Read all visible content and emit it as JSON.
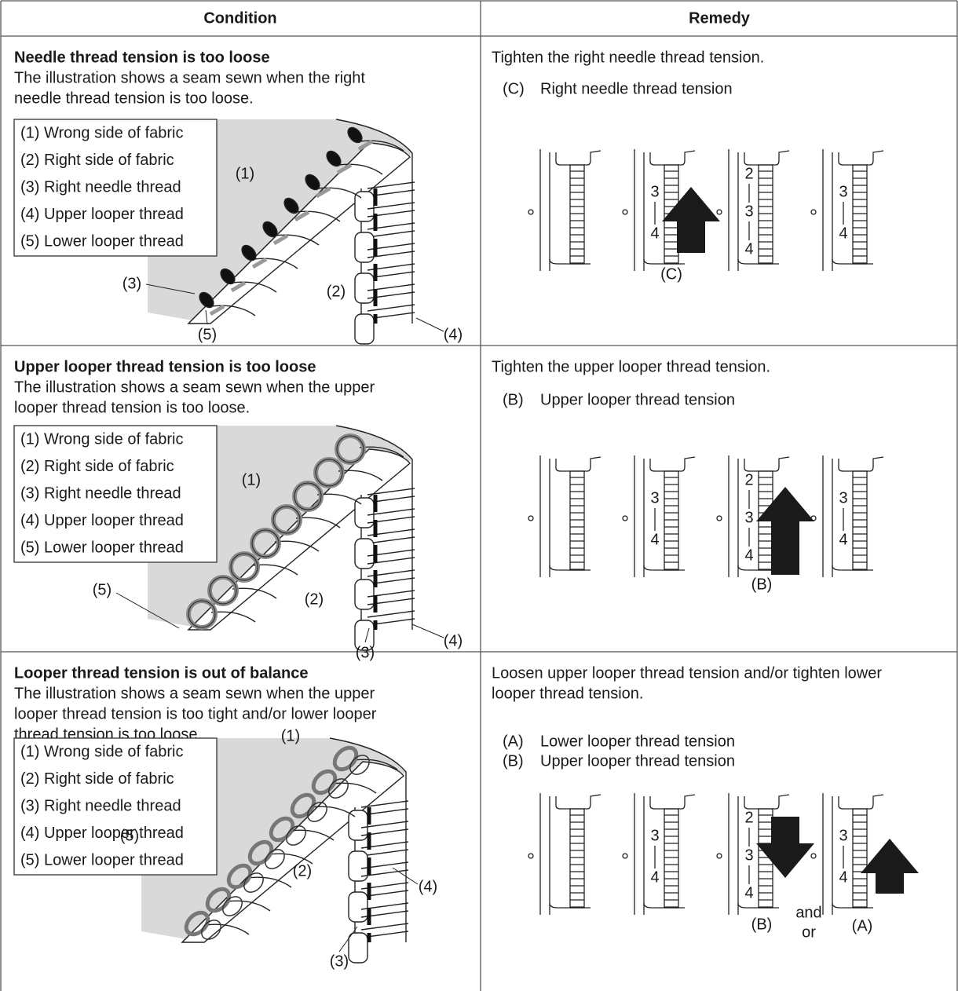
{
  "table": {
    "headers": [
      "Condition",
      "Remedy"
    ],
    "rows": [
      {
        "condition": {
          "title": "Needle thread tension is too loose",
          "description": [
            "The illustration shows a seam sewn when the right",
            "needle thread tension is too loose."
          ],
          "legend": [
            "(1) Wrong side of fabric",
            "(2) Right side of fabric",
            "(3) Right needle thread",
            "(4) Upper looper thread",
            "(5) Lower looper thread"
          ],
          "callouts": [
            "(1)",
            "(2)",
            "(3)",
            "(4)",
            "(5)"
          ]
        },
        "remedy": {
          "instruction": [
            "Tighten the right needle thread tension."
          ],
          "items": [
            {
              "label": "(C)",
              "text": "Right needle thread tension"
            }
          ],
          "dials": [
            {
              "numbers": []
            },
            {
              "numbers": [
                3,
                4
              ]
            },
            {
              "numbers": [
                2,
                3,
                4
              ]
            },
            {
              "numbers": [
                3,
                4
              ]
            }
          ],
          "dial_labels": [
            "(C)"
          ]
        }
      },
      {
        "condition": {
          "title": "Upper looper thread tension is too loose",
          "description": [
            "The illustration shows a seam sewn when the upper",
            "looper thread tension is too loose."
          ],
          "legend": [
            "(1) Wrong side of fabric",
            "(2) Right side of fabric",
            "(3) Right needle thread",
            "(4) Upper looper thread",
            "(5) Lower looper thread"
          ],
          "callouts": [
            "(1)",
            "(2)",
            "(3)",
            "(4)",
            "(5)"
          ]
        },
        "remedy": {
          "instruction": [
            "Tighten the upper looper thread tension."
          ],
          "items": [
            {
              "label": "(B)",
              "text": "Upper looper thread tension"
            }
          ],
          "dials": [
            {
              "numbers": []
            },
            {
              "numbers": [
                3,
                4
              ]
            },
            {
              "numbers": [
                2,
                3,
                4
              ]
            },
            {
              "numbers": [
                3,
                4
              ]
            }
          ],
          "dial_labels": [
            "(B)"
          ]
        }
      },
      {
        "condition": {
          "title": "Looper thread tension is out of balance",
          "description": [
            "The illustration shows a seam sewn when the upper",
            "looper thread tension is too tight and/or lower looper",
            "thread tension is too loose."
          ],
          "legend": [
            "(1) Wrong side of fabric",
            "(2) Right side of fabric",
            "(3) Right needle thread",
            "(4) Upper looper thread",
            "(5) Lower looper thread"
          ],
          "callouts": [
            "(1)",
            "(2)",
            "(3)",
            "(4)",
            "(5)"
          ]
        },
        "remedy": {
          "instruction": [
            "Loosen upper looper thread tension and/or tighten lower",
            "looper thread tension."
          ],
          "items": [
            {
              "label": "(A)",
              "text": "Lower looper thread tension"
            },
            {
              "label": "(B)",
              "text": "Upper looper thread tension"
            }
          ],
          "dials": [
            {
              "numbers": []
            },
            {
              "numbers": [
                3,
                4
              ]
            },
            {
              "numbers": [
                2,
                3,
                4
              ]
            },
            {
              "numbers": [
                3,
                4
              ]
            }
          ],
          "dial_labels": [
            "(B)",
            "and",
            "or",
            "(A)"
          ]
        }
      }
    ]
  }
}
